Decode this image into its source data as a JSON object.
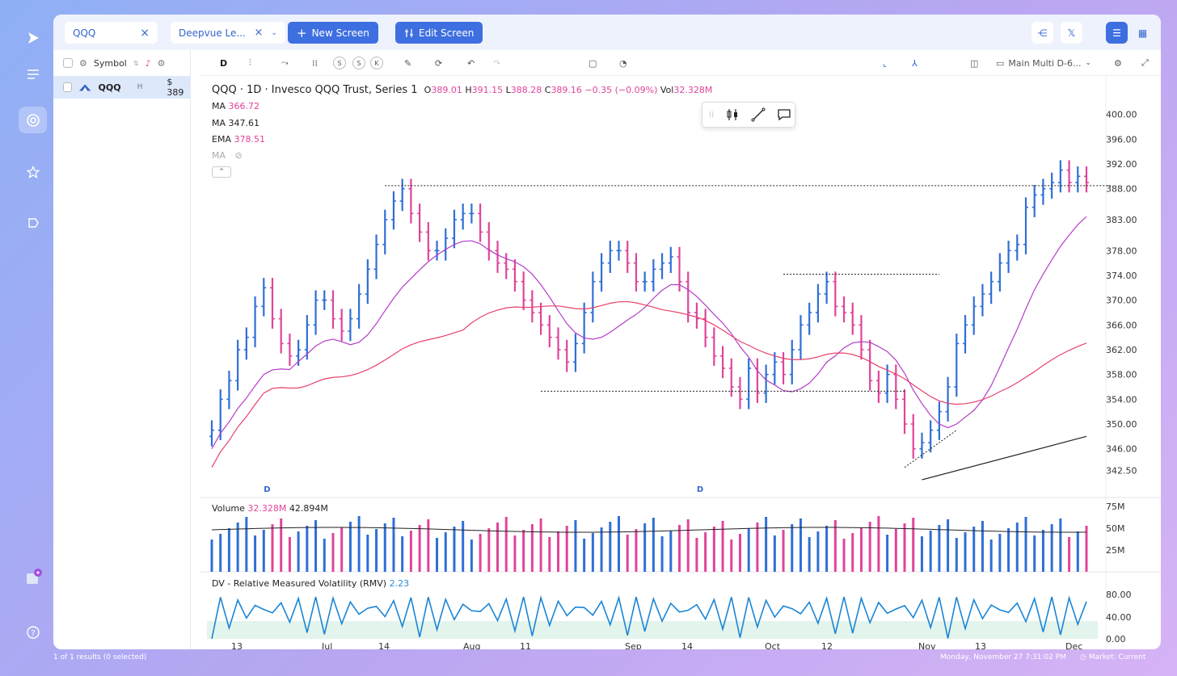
{
  "colors": {
    "up": "#2f6fd6",
    "down": "#e0449a",
    "ma1": "#b43cc8",
    "ma2": "#e8406a"
  },
  "search": {
    "value": "QQQ"
  },
  "screen_tab": {
    "label": "Deepvue Le..."
  },
  "buttons": {
    "new_screen": "New Screen",
    "edit_screen": "Edit Screen"
  },
  "panel": {
    "header": "Symbol",
    "row": {
      "symbol": "QQQ",
      "flag": "H",
      "price": "$ 389"
    }
  },
  "toolbar": {
    "interval": "D",
    "s1": "S",
    "s2": "S",
    "k": "K",
    "layout": "Main Multi D-6..."
  },
  "legend": {
    "title": "QQQ · 1D · Invesco QQQ Trust, Series 1",
    "o_label": "O",
    "o": "389.01",
    "h_label": "H",
    "h": "391.15",
    "l_label": "L",
    "l": "388.28",
    "c_label": "C",
    "c": "389.16",
    "chg": "−0.35 (−0.09%)",
    "vol_label": "Vol",
    "vol": "32.328M",
    "ma1_label": "MA",
    "ma1": "366.72",
    "ma2_label": "MA",
    "ma2": "347.61",
    "ema_label": "EMA",
    "ema": "378.51",
    "ma3_label": "MA"
  },
  "volume_legend": {
    "label": "Volume",
    "v1": "32.328M",
    "v2": "42.894M"
  },
  "rmv_legend": {
    "label": "DV - Relative Measured Volatility (RMV)",
    "value": "2.23"
  },
  "footer": {
    "results": "1 of 1 results (0 selected)",
    "datetime": "Monday, November 27 7:31:02  PM",
    "market": "Market: Current"
  },
  "chart_data": {
    "type": "ohlc",
    "price_axis": [
      "400.00",
      "396.00",
      "392.00",
      "388.00",
      "383.00",
      "378.00",
      "374.00",
      "370.00",
      "366.00",
      "362.00",
      "358.00",
      "354.00",
      "350.00",
      "346.00",
      "342.50"
    ],
    "volume_axis": [
      "75M",
      "50M",
      "25M"
    ],
    "rmv_axis": [
      "80.00",
      "40.00",
      "0.00"
    ],
    "x_ticks": [
      "13",
      "Jul",
      "14",
      "Aug",
      "11",
      "Sep",
      "14",
      "Oct",
      "12",
      "Nov",
      "13",
      "Dec"
    ],
    "markers": [
      "D",
      "D"
    ],
    "closes": [
      349,
      354,
      357,
      362,
      364,
      369,
      372,
      367,
      363,
      361,
      362,
      366,
      370,
      370,
      367,
      365,
      367,
      371,
      375,
      379,
      383,
      386,
      388,
      384,
      381,
      378,
      378,
      380,
      383,
      384,
      384,
      381,
      378,
      376,
      375,
      373,
      370,
      368,
      366,
      364,
      362,
      360,
      363,
      368,
      373,
      376,
      378,
      378,
      376,
      373,
      373,
      375,
      376,
      377,
      373,
      368,
      367,
      364,
      361,
      359,
      356,
      354,
      359,
      355,
      358,
      360,
      358,
      362,
      366,
      368,
      371,
      373,
      369,
      368,
      366,
      362,
      357,
      355,
      358,
      354,
      350,
      346,
      347,
      349,
      352,
      356,
      363,
      366,
      369,
      371,
      373,
      376,
      378,
      379,
      385,
      387,
      388,
      389,
      391,
      389,
      390,
      389
    ]
  }
}
